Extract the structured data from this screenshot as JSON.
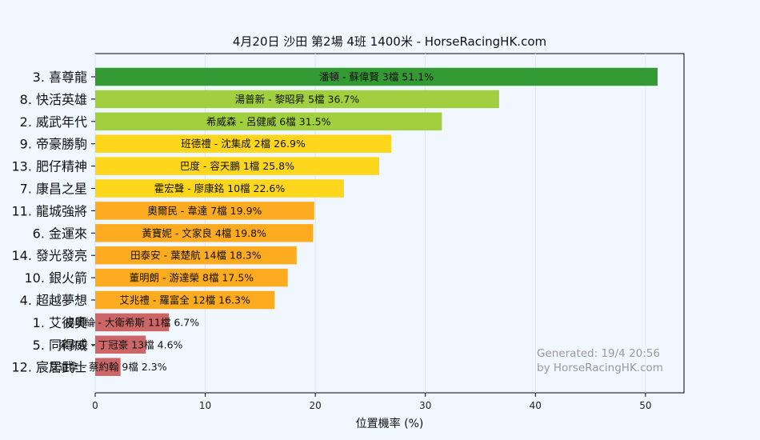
{
  "chart_data": {
    "type": "bar",
    "orientation": "horizontal",
    "title": "4月20日  沙田  第2場  4班  1400米 - HorseRacingHK.com",
    "xlabel": "位置機率 (%)",
    "ylabel": "",
    "xlim": [
      0,
      53.5
    ],
    "xticks": [
      0,
      10,
      20,
      30,
      40,
      50
    ],
    "grid": "vertical, major ticks",
    "categories": [
      "3. 喜尊龍",
      "8. 快活英雄",
      "2. 威武年代",
      "9. 帝豪勝駒",
      "13. 肥仔精神",
      "7. 康昌之星",
      "11. 龍城強將",
      "6. 金運來",
      "14. 發光發亮",
      "10. 銀火箭",
      "4. 超越夢想",
      "1. 艾彼奧",
      "5. 同得威",
      "12. 宸居武士"
    ],
    "values": [
      51.1,
      36.7,
      31.5,
      26.9,
      25.8,
      22.6,
      19.9,
      19.8,
      18.3,
      17.5,
      16.3,
      6.7,
      4.6,
      2.3
    ],
    "bar_labels": [
      "潘頓 - 蘇偉賢 3檔  51.1%",
      "湯普新 - 黎昭昇 5檔  36.7%",
      "希威森 - 呂健威 6檔  31.5%",
      "班德禮 - 沈集成 2檔  26.9%",
      "巴度 - 容天鵬 1檔  25.8%",
      "霍宏聲 - 廖康銘 10檔  22.6%",
      "奧爾民 - 韋達 7檔  19.9%",
      "黃寶妮 - 文家良 4檔  19.8%",
      "田泰安 - 葉楚航 14檔  18.3%",
      "董明朗 - 游達榮 8檔  17.5%",
      "艾兆禮 - 羅富全 12檔  16.3%",
      "楊明綸 - 大衛希斯 11檔  6.7%",
      "梁家俊 - 丁冠豪 13檔  4.6%",
      "艾道拿 - 蔡約翰 9檔  2.3%"
    ],
    "bar_colors": [
      "#339933",
      "#a2cf3f",
      "#a2cf3f",
      "#fed61c",
      "#fed61c",
      "#fed61c",
      "#fdab21",
      "#fdab21",
      "#fdab21",
      "#fdab21",
      "#fdab21",
      "#cd6666",
      "#cd6666",
      "#cd6666"
    ],
    "watermark": [
      "Generated: 19/4 20:56",
      "by HorseRacingHK.com"
    ]
  }
}
